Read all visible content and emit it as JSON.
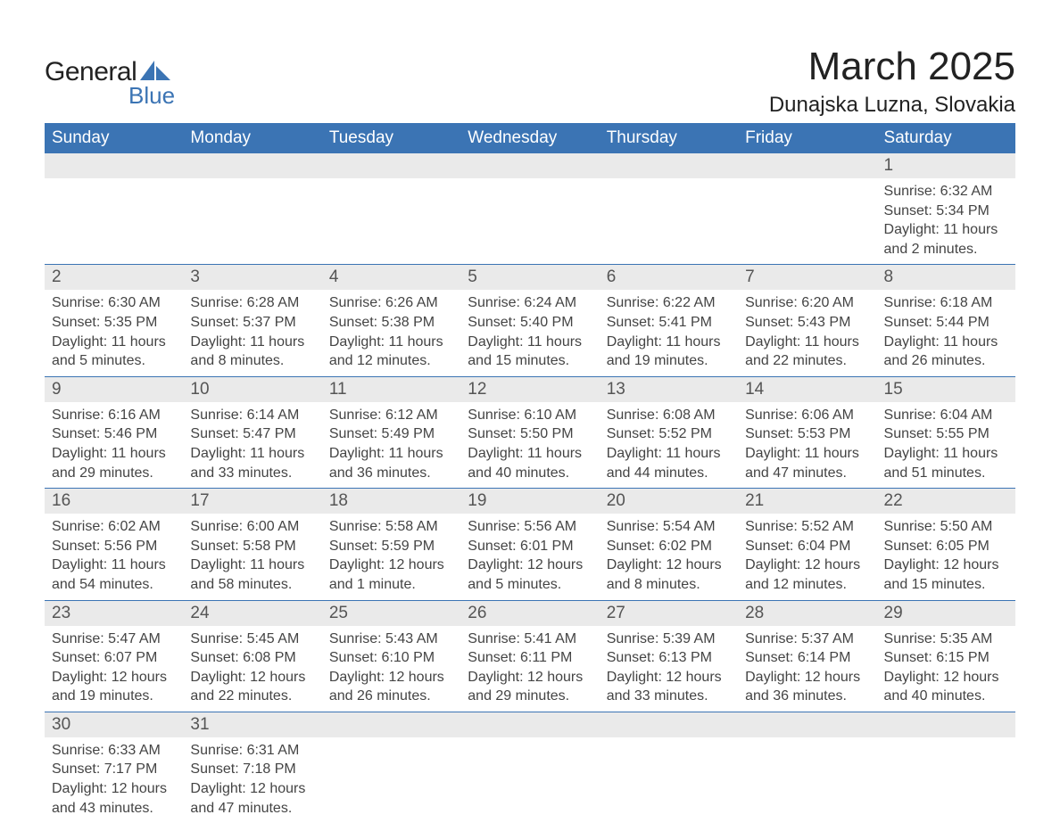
{
  "brand": {
    "general": "General",
    "blue": "Blue",
    "shape_color": "#3b74b4"
  },
  "title": "March 2025",
  "location": "Dunajska Luzna, Slovakia",
  "colors": {
    "header_bg": "#3b74b4",
    "header_fg": "#ffffff",
    "daynum_bg": "#eaeaea",
    "text": "#333333",
    "separator": "#3b74b4"
  },
  "fonts": {
    "title_size": 44,
    "location_size": 24,
    "header_size": 19,
    "body_size": 16
  },
  "weekdays": [
    "Sunday",
    "Monday",
    "Tuesday",
    "Wednesday",
    "Thursday",
    "Friday",
    "Saturday"
  ],
  "weeks": [
    [
      null,
      null,
      null,
      null,
      null,
      null,
      {
        "n": "1",
        "sr": "Sunrise: 6:32 AM",
        "ss": "Sunset: 5:34 PM",
        "d1": "Daylight: 11 hours",
        "d2": "and 2 minutes."
      }
    ],
    [
      {
        "n": "2",
        "sr": "Sunrise: 6:30 AM",
        "ss": "Sunset: 5:35 PM",
        "d1": "Daylight: 11 hours",
        "d2": "and 5 minutes."
      },
      {
        "n": "3",
        "sr": "Sunrise: 6:28 AM",
        "ss": "Sunset: 5:37 PM",
        "d1": "Daylight: 11 hours",
        "d2": "and 8 minutes."
      },
      {
        "n": "4",
        "sr": "Sunrise: 6:26 AM",
        "ss": "Sunset: 5:38 PM",
        "d1": "Daylight: 11 hours",
        "d2": "and 12 minutes."
      },
      {
        "n": "5",
        "sr": "Sunrise: 6:24 AM",
        "ss": "Sunset: 5:40 PM",
        "d1": "Daylight: 11 hours",
        "d2": "and 15 minutes."
      },
      {
        "n": "6",
        "sr": "Sunrise: 6:22 AM",
        "ss": "Sunset: 5:41 PM",
        "d1": "Daylight: 11 hours",
        "d2": "and 19 minutes."
      },
      {
        "n": "7",
        "sr": "Sunrise: 6:20 AM",
        "ss": "Sunset: 5:43 PM",
        "d1": "Daylight: 11 hours",
        "d2": "and 22 minutes."
      },
      {
        "n": "8",
        "sr": "Sunrise: 6:18 AM",
        "ss": "Sunset: 5:44 PM",
        "d1": "Daylight: 11 hours",
        "d2": "and 26 minutes."
      }
    ],
    [
      {
        "n": "9",
        "sr": "Sunrise: 6:16 AM",
        "ss": "Sunset: 5:46 PM",
        "d1": "Daylight: 11 hours",
        "d2": "and 29 minutes."
      },
      {
        "n": "10",
        "sr": "Sunrise: 6:14 AM",
        "ss": "Sunset: 5:47 PM",
        "d1": "Daylight: 11 hours",
        "d2": "and 33 minutes."
      },
      {
        "n": "11",
        "sr": "Sunrise: 6:12 AM",
        "ss": "Sunset: 5:49 PM",
        "d1": "Daylight: 11 hours",
        "d2": "and 36 minutes."
      },
      {
        "n": "12",
        "sr": "Sunrise: 6:10 AM",
        "ss": "Sunset: 5:50 PM",
        "d1": "Daylight: 11 hours",
        "d2": "and 40 minutes."
      },
      {
        "n": "13",
        "sr": "Sunrise: 6:08 AM",
        "ss": "Sunset: 5:52 PM",
        "d1": "Daylight: 11 hours",
        "d2": "and 44 minutes."
      },
      {
        "n": "14",
        "sr": "Sunrise: 6:06 AM",
        "ss": "Sunset: 5:53 PM",
        "d1": "Daylight: 11 hours",
        "d2": "and 47 minutes."
      },
      {
        "n": "15",
        "sr": "Sunrise: 6:04 AM",
        "ss": "Sunset: 5:55 PM",
        "d1": "Daylight: 11 hours",
        "d2": "and 51 minutes."
      }
    ],
    [
      {
        "n": "16",
        "sr": "Sunrise: 6:02 AM",
        "ss": "Sunset: 5:56 PM",
        "d1": "Daylight: 11 hours",
        "d2": "and 54 minutes."
      },
      {
        "n": "17",
        "sr": "Sunrise: 6:00 AM",
        "ss": "Sunset: 5:58 PM",
        "d1": "Daylight: 11 hours",
        "d2": "and 58 minutes."
      },
      {
        "n": "18",
        "sr": "Sunrise: 5:58 AM",
        "ss": "Sunset: 5:59 PM",
        "d1": "Daylight: 12 hours",
        "d2": "and 1 minute."
      },
      {
        "n": "19",
        "sr": "Sunrise: 5:56 AM",
        "ss": "Sunset: 6:01 PM",
        "d1": "Daylight: 12 hours",
        "d2": "and 5 minutes."
      },
      {
        "n": "20",
        "sr": "Sunrise: 5:54 AM",
        "ss": "Sunset: 6:02 PM",
        "d1": "Daylight: 12 hours",
        "d2": "and 8 minutes."
      },
      {
        "n": "21",
        "sr": "Sunrise: 5:52 AM",
        "ss": "Sunset: 6:04 PM",
        "d1": "Daylight: 12 hours",
        "d2": "and 12 minutes."
      },
      {
        "n": "22",
        "sr": "Sunrise: 5:50 AM",
        "ss": "Sunset: 6:05 PM",
        "d1": "Daylight: 12 hours",
        "d2": "and 15 minutes."
      }
    ],
    [
      {
        "n": "23",
        "sr": "Sunrise: 5:47 AM",
        "ss": "Sunset: 6:07 PM",
        "d1": "Daylight: 12 hours",
        "d2": "and 19 minutes."
      },
      {
        "n": "24",
        "sr": "Sunrise: 5:45 AM",
        "ss": "Sunset: 6:08 PM",
        "d1": "Daylight: 12 hours",
        "d2": "and 22 minutes."
      },
      {
        "n": "25",
        "sr": "Sunrise: 5:43 AM",
        "ss": "Sunset: 6:10 PM",
        "d1": "Daylight: 12 hours",
        "d2": "and 26 minutes."
      },
      {
        "n": "26",
        "sr": "Sunrise: 5:41 AM",
        "ss": "Sunset: 6:11 PM",
        "d1": "Daylight: 12 hours",
        "d2": "and 29 minutes."
      },
      {
        "n": "27",
        "sr": "Sunrise: 5:39 AM",
        "ss": "Sunset: 6:13 PM",
        "d1": "Daylight: 12 hours",
        "d2": "and 33 minutes."
      },
      {
        "n": "28",
        "sr": "Sunrise: 5:37 AM",
        "ss": "Sunset: 6:14 PM",
        "d1": "Daylight: 12 hours",
        "d2": "and 36 minutes."
      },
      {
        "n": "29",
        "sr": "Sunrise: 5:35 AM",
        "ss": "Sunset: 6:15 PM",
        "d1": "Daylight: 12 hours",
        "d2": "and 40 minutes."
      }
    ],
    [
      {
        "n": "30",
        "sr": "Sunrise: 6:33 AM",
        "ss": "Sunset: 7:17 PM",
        "d1": "Daylight: 12 hours",
        "d2": "and 43 minutes."
      },
      {
        "n": "31",
        "sr": "Sunrise: 6:31 AM",
        "ss": "Sunset: 7:18 PM",
        "d1": "Daylight: 12 hours",
        "d2": "and 47 minutes."
      },
      null,
      null,
      null,
      null,
      null
    ]
  ]
}
